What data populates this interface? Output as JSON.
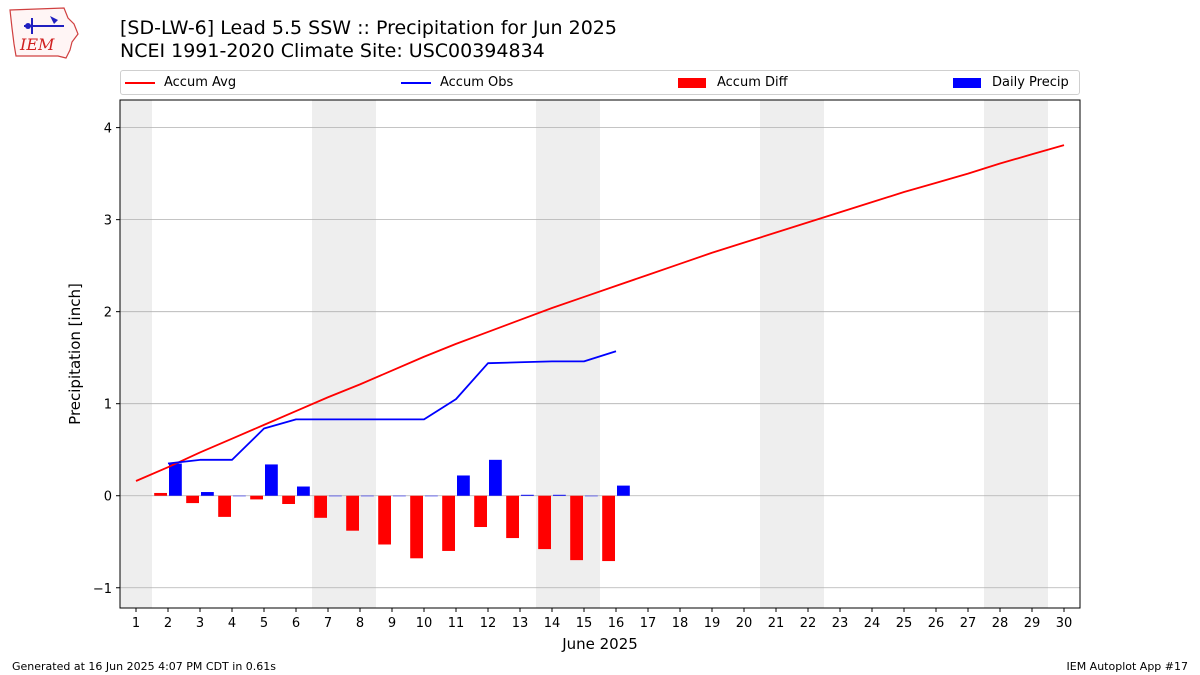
{
  "header": {
    "title_line1": "[SD-LW-6] Lead 5.5 SSW :: Precipitation for Jun 2025",
    "title_line2": "NCEI 1991-2020 Climate Site: USC00394834"
  },
  "logo": {
    "text": "IEM"
  },
  "legend": {
    "accum_avg": "Accum Avg",
    "accum_obs": "Accum Obs",
    "accum_diff": "Accum Diff",
    "daily_precip": "Daily Precip"
  },
  "footer": {
    "left": "Generated at 16 Jun 2025 4:07 PM CDT in 0.61s",
    "right": "IEM Autoplot App #17"
  },
  "colors": {
    "accum_avg": "#ff0000",
    "accum_obs": "#0000ff",
    "accum_diff": "#ff0000",
    "daily_precip": "#0000ff",
    "weekend_shade": "#eeeeee",
    "grid": "#b0b0b0"
  },
  "chart_data": {
    "type": "bar",
    "xlabel": "June 2025",
    "ylabel": "Precipitation [inch]",
    "xlim": [
      0.5,
      30.5
    ],
    "ylim": [
      -1.22,
      4.3
    ],
    "x_ticks": [
      1,
      2,
      3,
      4,
      5,
      6,
      7,
      8,
      9,
      10,
      11,
      12,
      13,
      14,
      15,
      16,
      17,
      18,
      19,
      20,
      21,
      22,
      23,
      24,
      25,
      26,
      27,
      28,
      29,
      30
    ],
    "y_ticks": [
      -1,
      0,
      1,
      2,
      3,
      4
    ],
    "grid": "horizontal",
    "legend_position": "top",
    "shaded_weekend_days": [
      [
        1
      ],
      [
        7,
        8
      ],
      [
        14,
        15
      ],
      [
        21,
        22
      ],
      [
        28,
        29
      ]
    ],
    "series": [
      {
        "name": "Accum Avg",
        "kind": "line",
        "x": [
          1,
          2,
          3,
          4,
          5,
          6,
          7,
          8,
          9,
          10,
          11,
          12,
          13,
          14,
          15,
          16,
          17,
          18,
          19,
          20,
          21,
          22,
          23,
          24,
          25,
          26,
          27,
          28,
          29,
          30
        ],
        "values": [
          0.16,
          0.31,
          0.47,
          0.62,
          0.77,
          0.92,
          1.07,
          1.21,
          1.36,
          1.51,
          1.65,
          1.78,
          1.91,
          2.04,
          2.16,
          2.28,
          2.4,
          2.52,
          2.64,
          2.75,
          2.86,
          2.97,
          3.08,
          3.19,
          3.3,
          3.4,
          3.5,
          3.61,
          3.71,
          3.81
        ]
      },
      {
        "name": "Accum Obs",
        "kind": "line",
        "x": [
          2,
          3,
          4,
          5,
          6,
          7,
          8,
          9,
          10,
          11,
          12,
          13,
          14,
          15,
          16
        ],
        "values": [
          0.35,
          0.39,
          0.39,
          0.73,
          0.83,
          0.83,
          0.83,
          0.83,
          0.83,
          1.05,
          1.44,
          1.45,
          1.46,
          1.46,
          1.57
        ]
      },
      {
        "name": "Accum Diff",
        "kind": "bar",
        "x": [
          2,
          3,
          4,
          5,
          6,
          7,
          8,
          9,
          10,
          11,
          12,
          13,
          14,
          15,
          16
        ],
        "values": [
          0.03,
          -0.08,
          -0.23,
          -0.04,
          -0.09,
          -0.24,
          -0.38,
          -0.53,
          -0.68,
          -0.6,
          -0.34,
          -0.46,
          -0.58,
          -0.7,
          -0.71
        ]
      },
      {
        "name": "Daily Precip",
        "kind": "bar",
        "x": [
          2,
          3,
          4,
          5,
          6,
          7,
          8,
          9,
          10,
          11,
          12,
          13,
          14,
          15,
          16
        ],
        "values": [
          0.35,
          0.04,
          0.0,
          0.34,
          0.1,
          0.0,
          0.0,
          0.0,
          0.0,
          0.22,
          0.39,
          0.01,
          0.01,
          0.0,
          0.11
        ]
      }
    ]
  }
}
